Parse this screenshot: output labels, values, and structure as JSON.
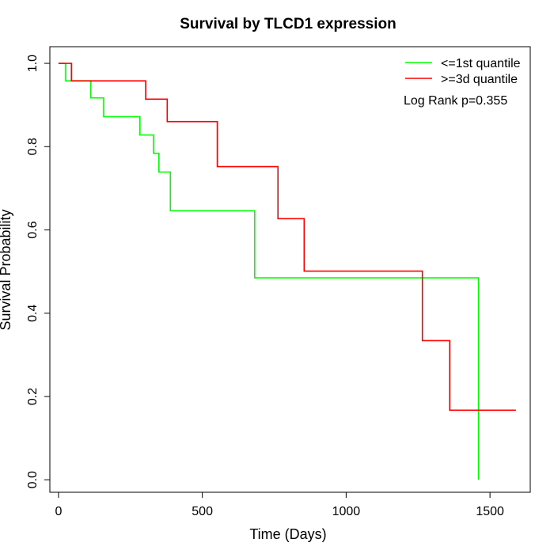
{
  "chart_data": {
    "type": "line",
    "step": true,
    "title": "Survival by TLCD1 expression",
    "xlabel": "Time (Days)",
    "ylabel": "Survival Probability",
    "xlim": [
      -30,
      1640
    ],
    "ylim": [
      -0.03,
      1.04
    ],
    "xticks": [
      0,
      500,
      1000,
      1500
    ],
    "xtick_labels": [
      "0",
      "500",
      "1000",
      "1500"
    ],
    "yticks": [
      0.0,
      0.2,
      0.4,
      0.6,
      0.8,
      1.0
    ],
    "ytick_labels": [
      "0.0",
      "0.2",
      "0.4",
      "0.6",
      "0.8",
      "1.0"
    ],
    "grid": false,
    "legend_position": "top-right",
    "annotation": "Log Rank p=0.355",
    "series": [
      {
        "name": "<=1st quantile",
        "color": "#00ff00",
        "times": [
          0,
          25,
          112,
          157,
          283,
          330,
          349,
          389,
          682,
          1460
        ],
        "survival": [
          1.0,
          0.958,
          0.917,
          0.872,
          0.828,
          0.784,
          0.739,
          0.646,
          0.485,
          0.0
        ]
      },
      {
        "name": ">=3d quantile",
        "color": "#ff0000",
        "times": [
          0,
          45,
          303,
          378,
          552,
          763,
          854,
          1265,
          1360,
          1590
        ],
        "survival": [
          1.0,
          0.958,
          0.914,
          0.86,
          0.752,
          0.627,
          0.501,
          0.334,
          0.167,
          0.167
        ]
      }
    ]
  }
}
